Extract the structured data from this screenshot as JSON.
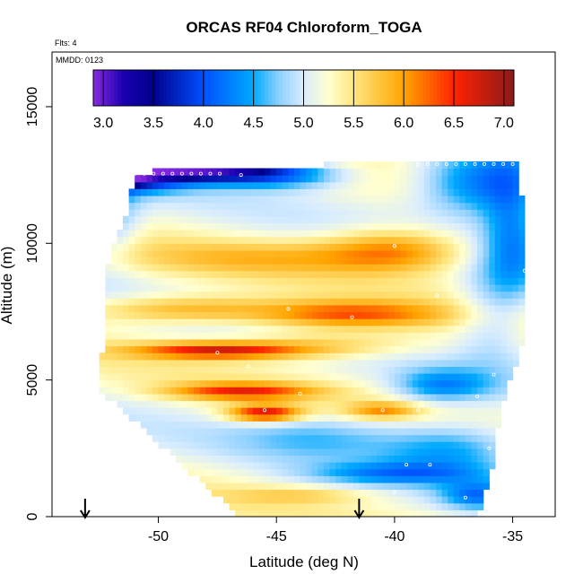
{
  "chart_data": {
    "type": "heatmap",
    "title": "ORCAS RF04 Chloroform_TOGA",
    "flights_note": "Flts: 4",
    "date_note": "MMDD: 0123",
    "xlabel": "Latitude (deg N)",
    "ylabel": "Altitude (m)",
    "xlim": [
      -54.5,
      -33.2
    ],
    "ylim": [
      0,
      17000
    ],
    "x_ticks": [
      -50,
      -45,
      -40,
      -35
    ],
    "x_tick_labels": [
      "-50",
      "-45",
      "-40",
      "-35"
    ],
    "y_ticks": [
      0,
      5000,
      10000,
      15000
    ],
    "y_tick_labels": [
      "0",
      "5000",
      "10000",
      "15000"
    ],
    "colorbar": {
      "range": [
        2.9,
        7.1
      ],
      "ticks": [
        3.0,
        3.5,
        4.0,
        4.5,
        5.0,
        5.5,
        6.0,
        6.5,
        7.0
      ],
      "tick_labels": [
        "3.0",
        "3.5",
        "4.0",
        "4.5",
        "5.0",
        "5.5",
        "6.0",
        "6.5",
        "7.0"
      ],
      "stops": [
        {
          "value": 2.9,
          "color": "#8a2be2"
        },
        {
          "value": 3.2,
          "color": "#1a00b0"
        },
        {
          "value": 3.5,
          "color": "#00008b"
        },
        {
          "value": 4.0,
          "color": "#0050ff"
        },
        {
          "value": 4.5,
          "color": "#00aaff"
        },
        {
          "value": 4.75,
          "color": "#8ed0ff"
        },
        {
          "value": 5.0,
          "color": "#d8ecff"
        },
        {
          "value": 5.25,
          "color": "#ffffd0"
        },
        {
          "value": 5.5,
          "color": "#ffe680"
        },
        {
          "value": 6.0,
          "color": "#ffa500"
        },
        {
          "value": 6.5,
          "color": "#ff2200"
        },
        {
          "value": 7.1,
          "color": "#8b1a1a"
        }
      ]
    },
    "field": {
      "lat_range": [
        -53.0,
        -34.5
      ],
      "alt_range": [
        0,
        13000
      ],
      "envelope": [
        {
          "alt": 0,
          "lat_min": -46.5,
          "lat_max": -36.5
        },
        {
          "alt": 1500,
          "lat_min": -48.5,
          "lat_max": -35.9
        },
        {
          "alt": 3500,
          "lat_min": -51.0,
          "lat_max": -35.6
        },
        {
          "alt": 4600,
          "lat_min": -52.5,
          "lat_max": -35.3
        },
        {
          "alt": 7000,
          "lat_min": -52.3,
          "lat_max": -34.3
        },
        {
          "alt": 9500,
          "lat_min": -52.1,
          "lat_max": -34.0
        },
        {
          "alt": 11500,
          "lat_min": -51.2,
          "lat_max": -34.6
        },
        {
          "alt": 12600,
          "lat_min": -51.0,
          "lat_max": -34.7
        },
        {
          "alt": 13000,
          "lat_min": -39.2,
          "lat_max": -34.7
        }
      ],
      "base_value": 5.2,
      "features": [
        {
          "lat": -52.0,
          "alt": 12400,
          "value": 3.4,
          "sx": 3.0,
          "sy": 500
        },
        {
          "lat": -48.0,
          "alt": 12700,
          "value": 3.6,
          "sx": 3.5,
          "sy": 400
        },
        {
          "lat": -45.0,
          "alt": 12500,
          "value": 4.3,
          "sx": 3.0,
          "sy": 500
        },
        {
          "lat": -36.5,
          "alt": 12200,
          "value": 4.1,
          "sx": 2.5,
          "sy": 1200
        },
        {
          "lat": -35.0,
          "alt": 10500,
          "value": 4.4,
          "sx": 1.2,
          "sy": 2500
        },
        {
          "lat": -52.0,
          "alt": 11000,
          "value": 4.6,
          "sx": 1.2,
          "sy": 1500
        },
        {
          "lat": -40.0,
          "alt": 9800,
          "value": 6.1,
          "sx": 3.0,
          "sy": 800
        },
        {
          "lat": -45.0,
          "alt": 9500,
          "value": 5.7,
          "sx": 6.0,
          "sy": 600
        },
        {
          "lat": -42.0,
          "alt": 7400,
          "value": 6.3,
          "sx": 4.0,
          "sy": 500
        },
        {
          "lat": -49.0,
          "alt": 7600,
          "value": 6.0,
          "sx": 4.0,
          "sy": 500
        },
        {
          "lat": -47.5,
          "alt": 6100,
          "value": 6.6,
          "sx": 3.5,
          "sy": 300
        },
        {
          "lat": -43.0,
          "alt": 6300,
          "value": 5.8,
          "sx": 4.0,
          "sy": 500
        },
        {
          "lat": -46.5,
          "alt": 4600,
          "value": 6.4,
          "sx": 3.0,
          "sy": 300
        },
        {
          "lat": -45.5,
          "alt": 3800,
          "value": 6.7,
          "sx": 1.5,
          "sy": 300
        },
        {
          "lat": -40.5,
          "alt": 3900,
          "value": 6.0,
          "sx": 1.5,
          "sy": 300
        },
        {
          "lat": -38.0,
          "alt": 4800,
          "value": 4.4,
          "sx": 2.0,
          "sy": 600
        },
        {
          "lat": -37.5,
          "alt": 2500,
          "value": 4.4,
          "sx": 3.0,
          "sy": 1000
        },
        {
          "lat": -40.0,
          "alt": 1600,
          "value": 4.5,
          "sx": 3.5,
          "sy": 400
        },
        {
          "lat": -43.0,
          "alt": 3000,
          "value": 4.7,
          "sx": 3.5,
          "sy": 800
        },
        {
          "lat": -44.0,
          "alt": 800,
          "value": 5.6,
          "sx": 3.0,
          "sy": 300
        },
        {
          "lat": -36.5,
          "alt": 800,
          "value": 4.4,
          "sx": 1.5,
          "sy": 500
        },
        {
          "lat": -36.0,
          "alt": 7500,
          "value": 4.8,
          "sx": 1.5,
          "sy": 2000
        }
      ],
      "sample_points": [
        {
          "lat": -51.8,
          "alt": 12550
        },
        {
          "lat": -51.4,
          "alt": 12550
        },
        {
          "lat": -51.0,
          "alt": 12550
        },
        {
          "lat": -50.6,
          "alt": 12550
        },
        {
          "lat": -50.2,
          "alt": 12550
        },
        {
          "lat": -49.8,
          "alt": 12550
        },
        {
          "lat": -49.4,
          "alt": 12550
        },
        {
          "lat": -49.0,
          "alt": 12550
        },
        {
          "lat": -48.6,
          "alt": 12550
        },
        {
          "lat": -48.2,
          "alt": 12550
        },
        {
          "lat": -47.8,
          "alt": 12550
        },
        {
          "lat": -47.4,
          "alt": 12550
        },
        {
          "lat": -46.5,
          "alt": 12500
        },
        {
          "lat": -52.0,
          "alt": 11200
        },
        {
          "lat": -39.0,
          "alt": 12900
        },
        {
          "lat": -38.6,
          "alt": 12900
        },
        {
          "lat": -38.2,
          "alt": 12900
        },
        {
          "lat": -37.8,
          "alt": 12900
        },
        {
          "lat": -37.4,
          "alt": 12900
        },
        {
          "lat": -37.0,
          "alt": 12900
        },
        {
          "lat": -36.6,
          "alt": 12900
        },
        {
          "lat": -36.2,
          "alt": 12900
        },
        {
          "lat": -35.8,
          "alt": 12900
        },
        {
          "lat": -35.4,
          "alt": 12900
        },
        {
          "lat": -35.0,
          "alt": 12900
        },
        {
          "lat": -40.0,
          "alt": 9900
        },
        {
          "lat": -38.2,
          "alt": 8100
        },
        {
          "lat": -41.8,
          "alt": 7300
        },
        {
          "lat": -44.5,
          "alt": 7600
        },
        {
          "lat": -47.5,
          "alt": 6000
        },
        {
          "lat": -46.2,
          "alt": 5500
        },
        {
          "lat": -44.0,
          "alt": 4500
        },
        {
          "lat": -45.5,
          "alt": 3900
        },
        {
          "lat": -40.5,
          "alt": 3900
        },
        {
          "lat": -39.0,
          "alt": 3900
        },
        {
          "lat": -36.5,
          "alt": 4400
        },
        {
          "lat": -35.8,
          "alt": 5200
        },
        {
          "lat": -36.0,
          "alt": 2500
        },
        {
          "lat": -38.5,
          "alt": 1900
        },
        {
          "lat": -39.5,
          "alt": 1900
        },
        {
          "lat": -40.0,
          "alt": 900
        },
        {
          "lat": -37.0,
          "alt": 700
        },
        {
          "lat": -34.5,
          "alt": 9000
        }
      ],
      "arrows_lat": [
        -53.1,
        -41.5
      ]
    }
  }
}
